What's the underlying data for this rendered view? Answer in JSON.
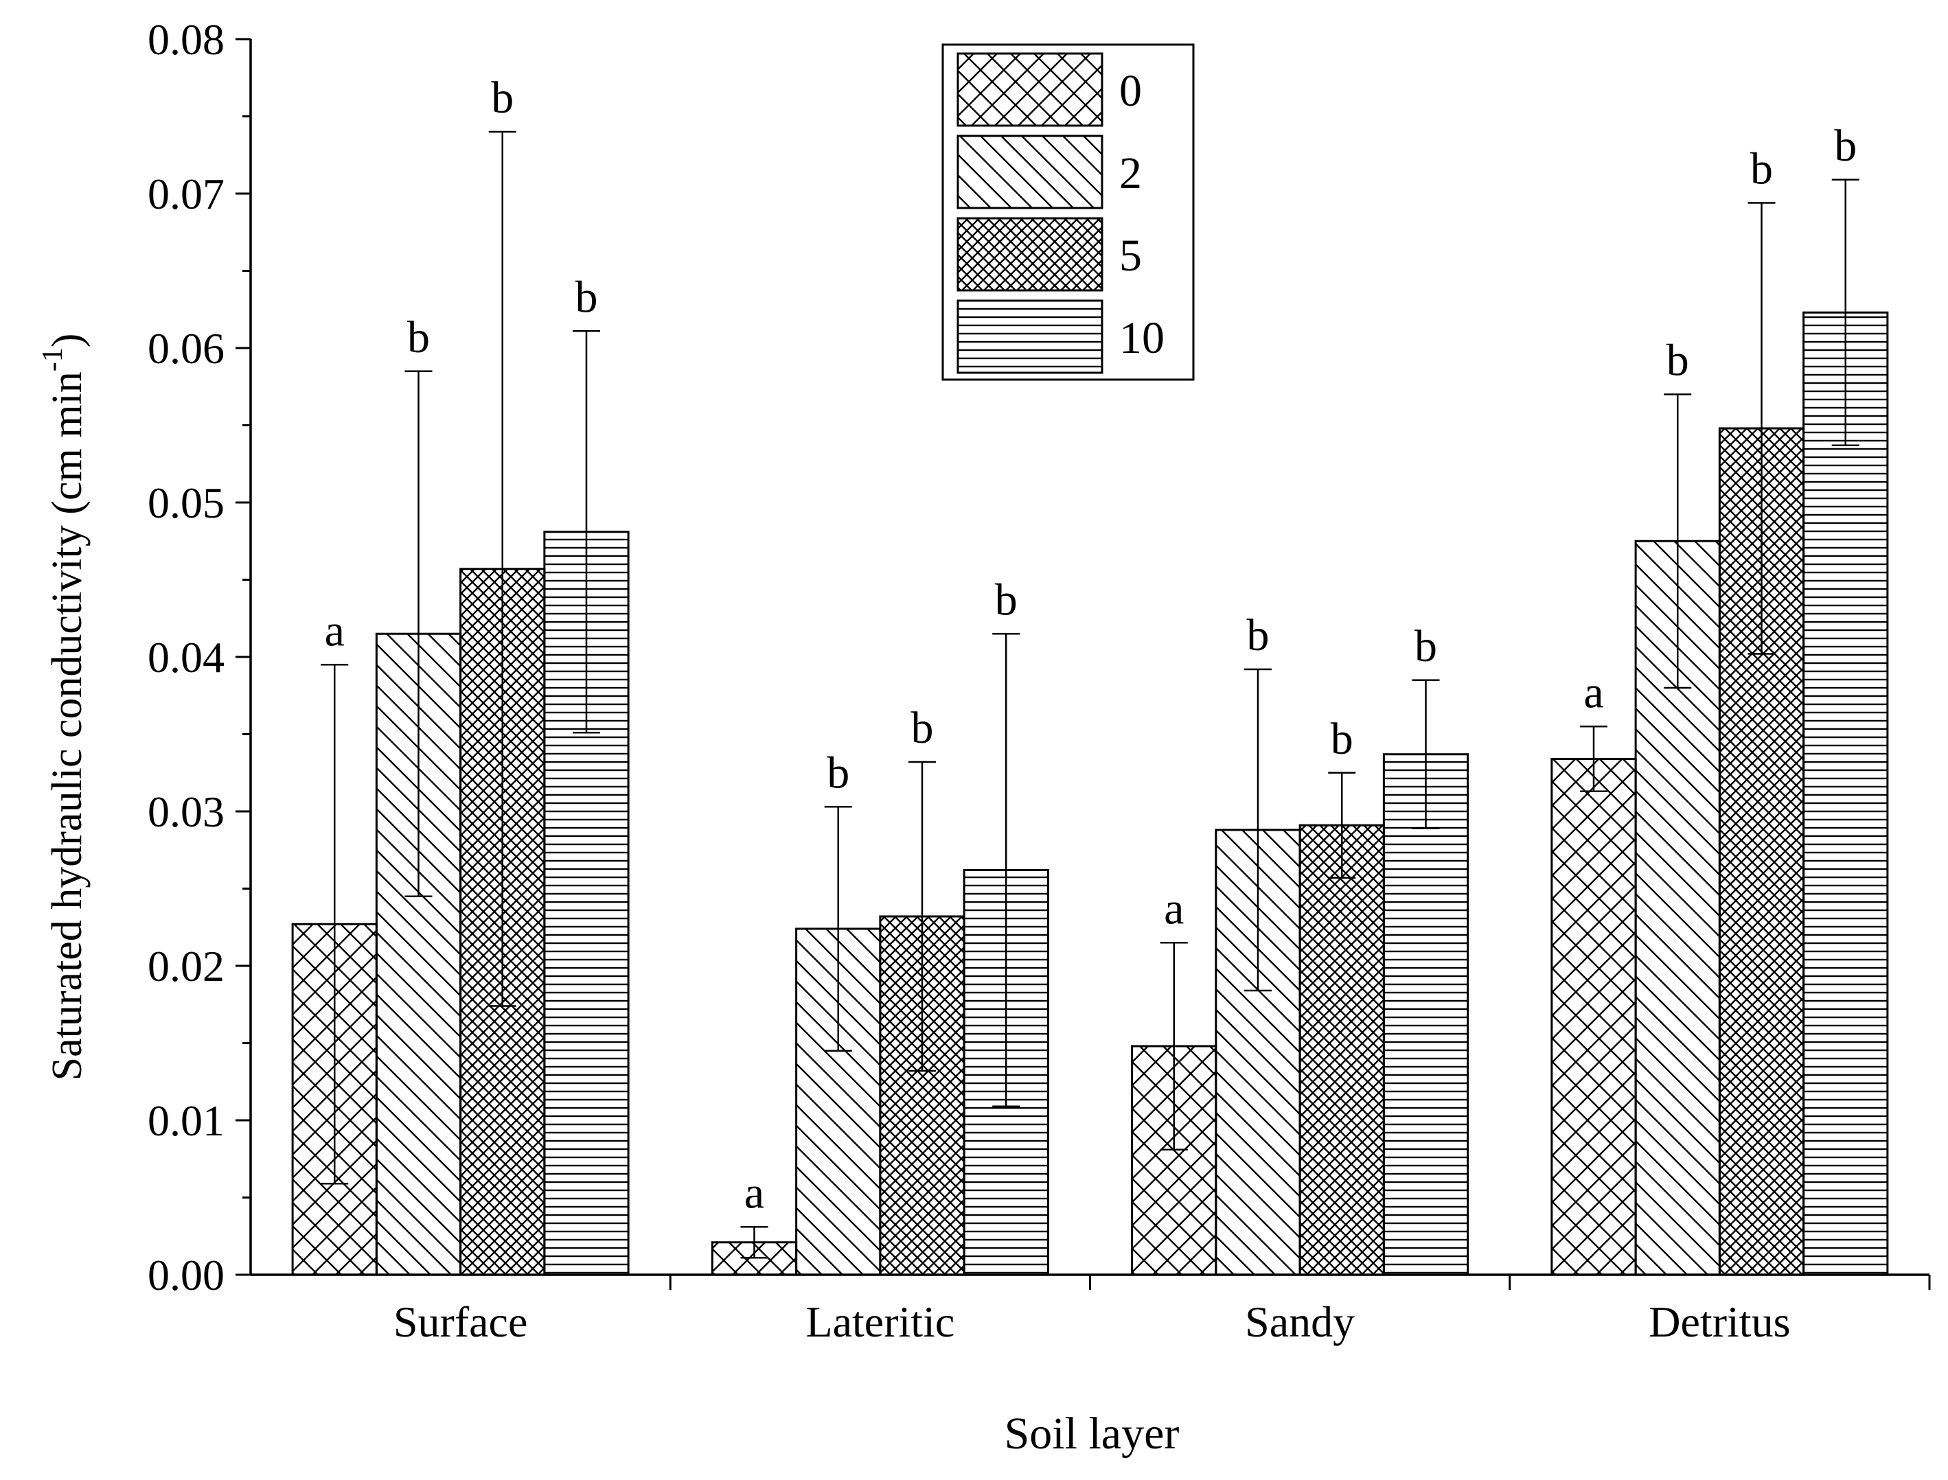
{
  "chart_data": {
    "type": "bar",
    "title": "",
    "xlabel": "Soil layer",
    "ylabel": "Saturated hydraulic conductivity (cm min",
    "ylabel_sup": "-1",
    "ylabel_close": ")",
    "ylim": [
      0,
      0.08
    ],
    "yticks": [
      "0.00",
      "0.01",
      "0.02",
      "0.03",
      "0.04",
      "0.05",
      "0.06",
      "0.07",
      "0.08"
    ],
    "categories": [
      "Surface",
      "Lateritic",
      "Sandy",
      "Detritus"
    ],
    "legend_position": "top-center",
    "grid": false,
    "series": [
      {
        "name": "0",
        "pattern": "crosshatch",
        "values": [
          0.0227,
          0.0021,
          0.0148,
          0.0334
        ],
        "errors": [
          0.0168,
          0.001,
          0.0067,
          0.0021
        ],
        "labels": [
          "a",
          "a",
          "a",
          "a"
        ]
      },
      {
        "name": "2",
        "pattern": "diagonal",
        "values": [
          0.0415,
          0.0224,
          0.0288,
          0.0475
        ],
        "errors": [
          0.017,
          0.0079,
          0.0104,
          0.0095
        ],
        "labels": [
          "b",
          "b",
          "b",
          "b"
        ]
      },
      {
        "name": "5",
        "pattern": "dense-crosshatch",
        "values": [
          0.0457,
          0.0232,
          0.0291,
          0.0548
        ],
        "errors": [
          0.0283,
          0.01,
          0.0034,
          0.0146
        ],
        "labels": [
          "b",
          "b",
          "b",
          "b"
        ]
      },
      {
        "name": "10",
        "pattern": "horizontal",
        "values": [
          0.0481,
          0.0262,
          0.0337,
          0.0623
        ],
        "errors": [
          0.013,
          0.0153,
          0.0048,
          0.0086
        ],
        "labels": [
          "b",
          "b",
          "b",
          "b"
        ]
      }
    ]
  }
}
